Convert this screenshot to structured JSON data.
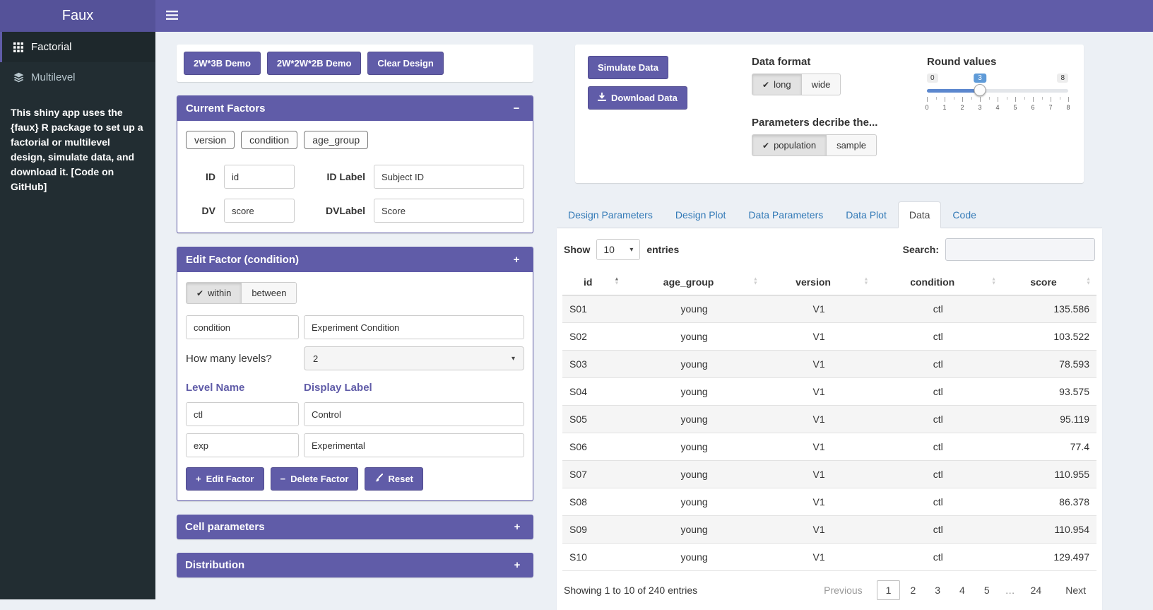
{
  "header": {
    "logo": "Faux"
  },
  "sidebar": {
    "items": [
      {
        "label": "Factorial",
        "active": true
      },
      {
        "label": "Multilevel",
        "active": false
      }
    ],
    "note": "This shiny app uses the {faux} R package to set up a factorial or multilevel design, simulate data, and download it.",
    "note_link": "[Code on GitHub]"
  },
  "design": {
    "demo_2w3b": "2W*3B Demo",
    "demo_2w2w2b": "2W*2W*2B Demo",
    "clear": "Clear Design"
  },
  "current_factors": {
    "title": "Current Factors",
    "collapse_icon": "−",
    "chips": [
      "version",
      "condition",
      "age_group"
    ],
    "id_label": "ID",
    "id_value": "id",
    "id_label_label": "ID Label",
    "id_label_value": "Subject ID",
    "dv_label": "DV",
    "dv_value": "score",
    "dv_label_label": "DVLabel",
    "dv_label_value": "Score"
  },
  "edit_factor": {
    "title": "Edit Factor (condition)",
    "expand_icon": "+",
    "within": "within",
    "between": "between",
    "name_value": "condition",
    "display_value": "Experiment Condition",
    "levels_question": "How many levels?",
    "levels_count": "2",
    "level_name_header": "Level Name",
    "display_label_header": "Display Label",
    "levels": [
      {
        "name": "ctl",
        "label": "Control"
      },
      {
        "name": "exp",
        "label": "Experimental"
      }
    ],
    "edit_button": "Edit Factor",
    "delete_button": "Delete Factor",
    "reset_button": "Reset"
  },
  "cell_parameters": {
    "title": "Cell parameters",
    "expand_icon": "+"
  },
  "distribution": {
    "title": "Distribution",
    "expand_icon": "+"
  },
  "simulate": {
    "simulate_button": "Simulate Data",
    "download_button": "Download Data",
    "data_format_label": "Data format",
    "format_long": "long",
    "format_wide": "wide",
    "parameters_label": "Parameters decribe the...",
    "param_population": "population",
    "param_sample": "sample",
    "round_label": "Round values",
    "slider": {
      "min": "0",
      "max": "8",
      "value": "3",
      "ticks": [
        "0",
        "1",
        "2",
        "3",
        "4",
        "5",
        "6",
        "7",
        "8"
      ]
    }
  },
  "tabs": [
    {
      "label": "Design Parameters",
      "active": false
    },
    {
      "label": "Design Plot",
      "active": false
    },
    {
      "label": "Data Parameters",
      "active": false
    },
    {
      "label": "Data Plot",
      "active": false
    },
    {
      "label": "Data",
      "active": true
    },
    {
      "label": "Code",
      "active": false
    }
  ],
  "table": {
    "show_label": "Show",
    "page_length": "10",
    "entries_label": "entries",
    "search_label": "Search:",
    "columns": [
      "id",
      "age_group",
      "version",
      "condition",
      "score"
    ],
    "rows": [
      [
        "S01",
        "young",
        "V1",
        "ctl",
        "135.586"
      ],
      [
        "S02",
        "young",
        "V1",
        "ctl",
        "103.522"
      ],
      [
        "S03",
        "young",
        "V1",
        "ctl",
        "78.593"
      ],
      [
        "S04",
        "young",
        "V1",
        "ctl",
        "93.575"
      ],
      [
        "S05",
        "young",
        "V1",
        "ctl",
        "95.119"
      ],
      [
        "S06",
        "young",
        "V1",
        "ctl",
        "77.4"
      ],
      [
        "S07",
        "young",
        "V1",
        "ctl",
        "110.955"
      ],
      [
        "S08",
        "young",
        "V1",
        "ctl",
        "86.378"
      ],
      [
        "S09",
        "young",
        "V1",
        "ctl",
        "110.954"
      ],
      [
        "S10",
        "young",
        "V1",
        "ctl",
        "129.497"
      ]
    ],
    "info": "Showing 1 to 10 of 240 entries",
    "pagination": {
      "previous": "Previous",
      "pages": [
        "1",
        "2",
        "3",
        "4",
        "5",
        "…",
        "24"
      ],
      "active_page": "1",
      "next": "Next"
    }
  },
  "icons": {
    "check": "✔",
    "caret_down": "▾",
    "sort_asc": "▲",
    "sort_desc": "▼"
  },
  "colors": {
    "brand_purple": "#605ca8",
    "logo_purple": "#555299",
    "sidebar_dark": "#222d32",
    "content_bg": "#ecf0f5",
    "link_blue": "#337ab7",
    "slider_blue": "#5b87ce"
  }
}
